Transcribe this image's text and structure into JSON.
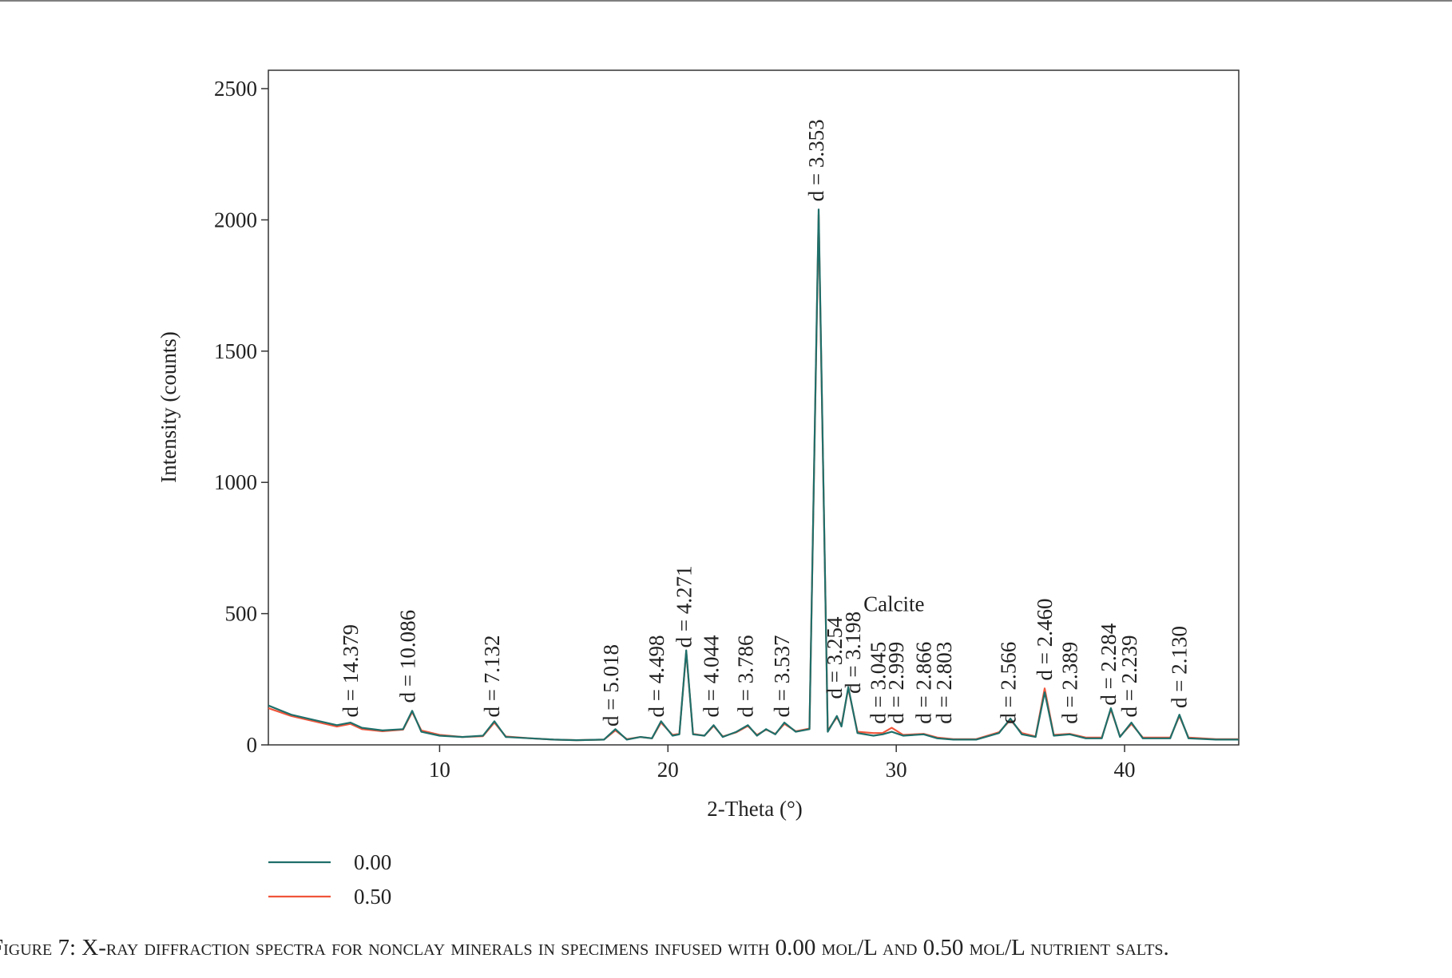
{
  "chart_data": {
    "type": "line",
    "x_label": "2-Theta (°)",
    "y_label": "Intensity (counts)",
    "caption": "Figure 7: X-ray diffraction spectra for nonclay minerals in specimens infused with 0.00 mol/L and 0.50 mol/L nutrient salts.",
    "xlim": [
      2.5,
      45
    ],
    "ylim": [
      0,
      2570
    ],
    "xticks": [
      10,
      20,
      30,
      40
    ],
    "yticks": [
      0,
      500,
      1000,
      1500,
      2000,
      2500
    ],
    "x": [
      2.5,
      3.5,
      4.5,
      5.5,
      6.1,
      6.6,
      7.5,
      8.4,
      8.8,
      9.2,
      10,
      11,
      11.9,
      12.4,
      12.9,
      14,
      15,
      16,
      17.2,
      17.7,
      18.2,
      18.8,
      19.3,
      19.7,
      20.2,
      20.5,
      20.8,
      21.1,
      21.6,
      22.0,
      22.4,
      23.0,
      23.5,
      23.9,
      24.3,
      24.7,
      25.1,
      25.6,
      26.2,
      26.6,
      27.0,
      27.4,
      27.6,
      27.9,
      28.3,
      29.0,
      29.4,
      29.8,
      30.3,
      31.2,
      31.8,
      32.5,
      33.5,
      34.5,
      35.0,
      35.5,
      36.1,
      36.5,
      36.9,
      37.6,
      38.3,
      39.0,
      39.4,
      39.8,
      40.3,
      40.8,
      42.0,
      42.4,
      42.8,
      44,
      45
    ],
    "series": [
      {
        "name": "0.00",
        "color": "#1f6f6a",
        "values": [
          150,
          115,
          95,
          75,
          85,
          65,
          55,
          60,
          130,
          50,
          35,
          30,
          35,
          90,
          30,
          25,
          20,
          18,
          20,
          60,
          20,
          30,
          25,
          90,
          35,
          40,
          360,
          40,
          35,
          75,
          30,
          50,
          75,
          35,
          60,
          40,
          85,
          50,
          60,
          2040,
          50,
          110,
          70,
          220,
          45,
          35,
          40,
          50,
          35,
          40,
          25,
          20,
          20,
          45,
          100,
          40,
          30,
          200,
          35,
          40,
          25,
          25,
          140,
          30,
          85,
          25,
          25,
          115,
          25,
          20,
          20
        ]
      },
      {
        "name": "0.50",
        "color": "#f0553a",
        "values": [
          140,
          110,
          90,
          70,
          80,
          60,
          52,
          58,
          125,
          55,
          38,
          30,
          33,
          85,
          32,
          25,
          20,
          18,
          20,
          55,
          22,
          30,
          25,
          85,
          38,
          42,
          355,
          42,
          35,
          72,
          32,
          48,
          72,
          38,
          58,
          42,
          80,
          52,
          62,
          2020,
          55,
          105,
          75,
          215,
          50,
          45,
          45,
          65,
          38,
          42,
          28,
          22,
          22,
          48,
          95,
          45,
          32,
          215,
          38,
          42,
          28,
          28,
          135,
          32,
          80,
          28,
          28,
          110,
          28,
          22,
          22
        ]
      }
    ],
    "annotations": [
      {
        "text": "d = 14.379",
        "x": 6.1,
        "y": 105
      },
      {
        "text": "d = 10.086",
        "x": 8.6,
        "y": 160
      },
      {
        "text": "d = 7.132",
        "x": 12.3,
        "y": 105
      },
      {
        "text": "d = 5.018",
        "x": 17.5,
        "y": 70
      },
      {
        "text": "d = 4.498",
        "x": 19.5,
        "y": 105
      },
      {
        "text": "d = 4.271",
        "x": 20.7,
        "y": 370
      },
      {
        "text": "d = 4.044",
        "x": 21.9,
        "y": 105
      },
      {
        "text": "d = 3.786",
        "x": 23.4,
        "y": 105
      },
      {
        "text": "d = 3.537",
        "x": 25.0,
        "y": 105
      },
      {
        "text": "d = 3.353",
        "x": 26.5,
        "y": 2070
      },
      {
        "text": "d = 3.254",
        "x": 27.3,
        "y": 175
      },
      {
        "text": "d = 3.198",
        "x": 28.1,
        "y": 195
      },
      {
        "text": "d = 3.045",
        "x": 29.2,
        "y": 80
      },
      {
        "text": "d = 2.999",
        "x": 30.0,
        "y": 80
      },
      {
        "text": "d = 2.866",
        "x": 31.2,
        "y": 80
      },
      {
        "text": "d = 2.803",
        "x": 32.1,
        "y": 80
      },
      {
        "text": "d = 2.566",
        "x": 34.9,
        "y": 80
      },
      {
        "text": "d = 2.460",
        "x": 36.5,
        "y": 245
      },
      {
        "text": "d = 2.389",
        "x": 37.6,
        "y": 80
      },
      {
        "text": "d = 2.284",
        "x": 39.3,
        "y": 150
      },
      {
        "text": "d = 2.239",
        "x": 40.2,
        "y": 105
      },
      {
        "text": "d = 2.130",
        "x": 42.4,
        "y": 140
      }
    ],
    "calcite_label": {
      "text": "Calcite",
      "x": 29.9,
      "y": 510
    }
  }
}
